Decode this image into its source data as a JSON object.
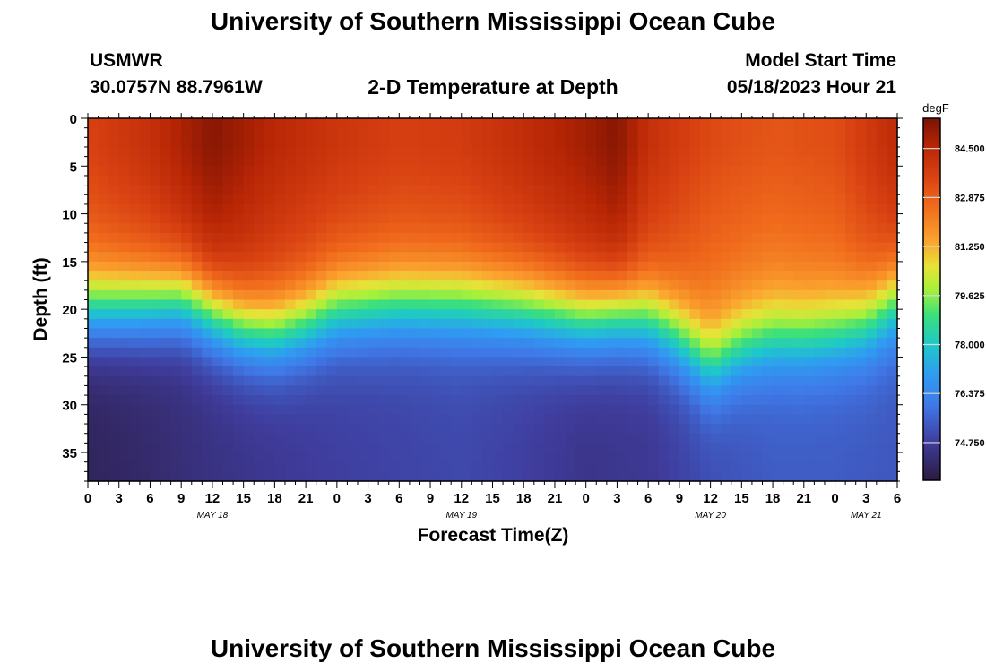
{
  "header": {
    "title": "University of Southern Mississippi Ocean Cube",
    "station": "USMWR",
    "coords": "30.0757N  88.7961W",
    "subtitle": "2-D Temperature at Depth",
    "model_label": "Model Start Time",
    "model_time": "05/18/2023 Hour 21"
  },
  "footer": {
    "title": "University of Southern Mississippi Ocean Cube"
  },
  "colors": {
    "background": "#ffffff",
    "text": "#000000"
  },
  "chart_data": {
    "type": "heatmap",
    "title": "2-D Temperature at Depth",
    "xlabel": "Forecast Time(Z)",
    "ylabel": "Depth (ft)",
    "xlim": [
      0,
      78
    ],
    "ylim": [
      38,
      0
    ],
    "x_ticks": [
      0,
      3,
      6,
      9,
      12,
      15,
      18,
      21,
      24,
      27,
      30,
      33,
      36,
      39,
      42,
      45,
      48,
      51,
      54,
      57,
      60,
      63,
      66,
      69,
      72,
      75,
      78
    ],
    "x_tick_labels": [
      "0",
      "3",
      "6",
      "9",
      "12",
      "15",
      "18",
      "21",
      "0",
      "3",
      "6",
      "9",
      "12",
      "15",
      "18",
      "21",
      "0",
      "3",
      "6",
      "9",
      "12",
      "15",
      "18",
      "21",
      "0",
      "3",
      "6"
    ],
    "date_labels": [
      {
        "label": "MAY 18",
        "x": 12
      },
      {
        "label": "MAY 19",
        "x": 36
      },
      {
        "label": "MAY 20",
        "x": 60
      },
      {
        "label": "MAY 21",
        "x": 75
      }
    ],
    "y_ticks": [
      0,
      5,
      10,
      15,
      20,
      25,
      30,
      35
    ],
    "colorbar": {
      "units": "degF",
      "min": 73.5,
      "max": 85.5,
      "ticks": [
        "84.500",
        "82.875",
        "81.250",
        "79.625",
        "78.000",
        "76.375",
        "74.750"
      ],
      "tick_values": [
        84.5,
        82.875,
        81.25,
        79.625,
        78.0,
        76.375,
        74.75
      ],
      "stops": [
        {
          "v": 73.5,
          "c": "#2b1a3e"
        },
        {
          "v": 74.75,
          "c": "#3f3c9c"
        },
        {
          "v": 76.0,
          "c": "#3f79e8"
        },
        {
          "v": 77.0,
          "c": "#2f9cf2"
        },
        {
          "v": 78.0,
          "c": "#1ec8c8"
        },
        {
          "v": 79.0,
          "c": "#3de07a"
        },
        {
          "v": 79.8,
          "c": "#a6f03a"
        },
        {
          "v": 80.6,
          "c": "#e8e237"
        },
        {
          "v": 81.4,
          "c": "#fba52f"
        },
        {
          "v": 82.6,
          "c": "#f06a1c"
        },
        {
          "v": 83.6,
          "c": "#d84112"
        },
        {
          "v": 84.6,
          "c": "#b62505"
        },
        {
          "v": 85.5,
          "c": "#7a1303"
        }
      ]
    },
    "thermocline_depth_ft": {
      "x": [
        0,
        6,
        9,
        12,
        15,
        18,
        21,
        24,
        30,
        36,
        42,
        48,
        51,
        54,
        57,
        60,
        63,
        66,
        69,
        72,
        75,
        78
      ],
      "depth": [
        20,
        19.5,
        19,
        20.5,
        22,
        22.5,
        21.5,
        20,
        19.5,
        19.5,
        20,
        21,
        20.5,
        21,
        23,
        26,
        24,
        23,
        23,
        22.5,
        21.5,
        19
      ]
    },
    "surface_temp_degF": {
      "x": [
        0,
        6,
        12,
        18,
        24,
        30,
        36,
        42,
        48,
        51,
        54,
        60,
        66,
        72,
        78
      ],
      "values": [
        83.6,
        84.2,
        85.3,
        84.5,
        84.0,
        83.7,
        83.8,
        84.3,
        84.9,
        85.3,
        84.2,
        83.4,
        83.1,
        83.3,
        84.4
      ]
    },
    "bottom_temp_degF": {
      "x": [
        0,
        6,
        12,
        18,
        24,
        30,
        36,
        42,
        48,
        54,
        60,
        66,
        72,
        78
      ],
      "values": [
        73.9,
        74.1,
        74.4,
        74.6,
        74.8,
        74.9,
        75.0,
        74.8,
        74.5,
        74.6,
        75.1,
        75.4,
        75.4,
        75.3
      ]
    }
  }
}
